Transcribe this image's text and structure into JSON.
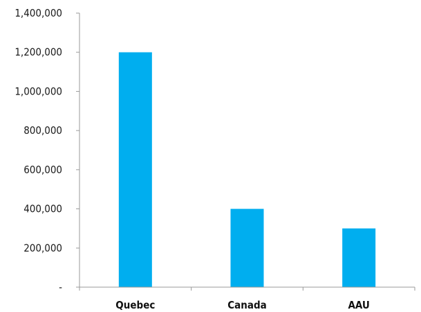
{
  "chart_data": {
    "type": "bar",
    "categories": [
      "Quebec",
      "Canada",
      "AAU"
    ],
    "values": [
      1200000,
      400000,
      300000
    ],
    "ylim": [
      0,
      1400000
    ],
    "y_ticks": [
      0,
      200000,
      400000,
      600000,
      800000,
      1000000,
      1200000,
      1400000
    ],
    "y_tick_labels": [
      "-",
      "200,000",
      "400,000",
      "600,000",
      "800,000",
      "1,000,000",
      "1,200,000",
      "1,400,000"
    ],
    "grid": false,
    "bar_color": "#00aeef",
    "title": "",
    "xlabel": "",
    "ylabel": ""
  }
}
